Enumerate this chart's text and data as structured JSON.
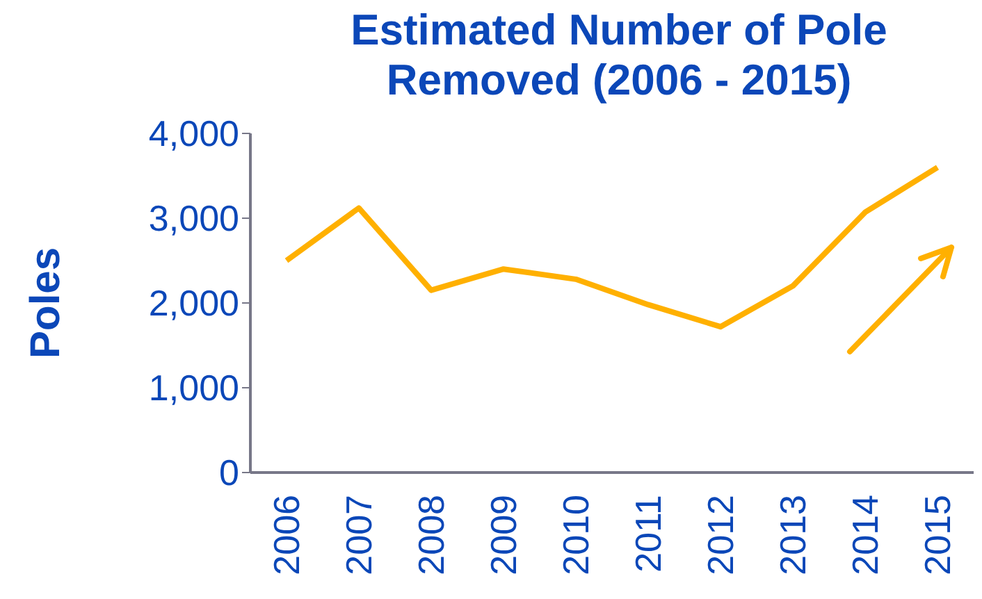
{
  "chart_data": {
    "type": "line",
    "title": "Estimated Number of Pole Removed (2006 - 2015)",
    "ylabel": "Poles",
    "categories": [
      "2006",
      "2007",
      "2008",
      "2009",
      "2010",
      "2011",
      "2012",
      "2013",
      "2014",
      "2015"
    ],
    "series": [
      {
        "color": "#ffb000",
        "values": [
          2500,
          3120,
          2150,
          2400,
          2280,
          1980,
          1720,
          2200,
          3070,
          3600
        ]
      }
    ],
    "ylim": [
      0,
      4000
    ],
    "yticks": [
      0,
      {
        "value": 1000,
        "label": "1,000"
      },
      {
        "value": 2000,
        "label": "2,000"
      },
      {
        "value": 3000,
        "label": "3,000"
      },
      {
        "value": 4000,
        "label": "4,000"
      }
    ],
    "grid": false,
    "legend": false,
    "marker": "none",
    "line_style": "solid"
  }
}
